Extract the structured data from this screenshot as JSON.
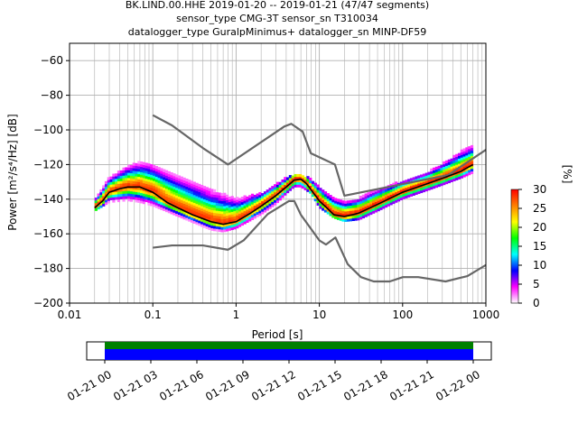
{
  "title_lines": [
    "BK.LIND.00.HHE   2019-01-20 -- 2019-01-21  (47/47 segments)",
    "sensor_type CMG-3T sensor_sn T310034",
    "datalogger_type GuralpMinimus+ datalogger_sn MINP-DF59"
  ],
  "chart_data": {
    "type": "heatmap",
    "xlabel": "Period [s]",
    "ylabel": "Power [m²/s⁴/Hz] [dB]",
    "xscale": "log",
    "xlim": [
      0.01,
      1000
    ],
    "ylim": [
      -200,
      -50
    ],
    "x_ticks": [
      0.01,
      0.1,
      1,
      10,
      100,
      1000
    ],
    "x_tick_labels": [
      "0.01",
      "0.1",
      "1",
      "10",
      "100",
      "1000"
    ],
    "y_ticks": [
      -200,
      -180,
      -160,
      -140,
      -120,
      -100,
      -80,
      -60
    ],
    "y_tick_labels": [
      "−200",
      "−180",
      "−160",
      "−140",
      "−120",
      "−100",
      "−80",
      "−60"
    ],
    "grid": true,
    "colorbar": {
      "label": "[%]",
      "range": [
        0,
        30
      ],
      "ticks": [
        0,
        5,
        10,
        15,
        20,
        25,
        30
      ],
      "tick_labels": [
        "0",
        "5",
        "10",
        "15",
        "20",
        "25",
        "30"
      ],
      "colors": [
        "#ffffff",
        "#ff00ff",
        "#0000ff",
        "#00ffff",
        "#00ff00",
        "#ffff00",
        "#ff8000",
        "#ff0000"
      ]
    },
    "mode_curve": [
      [
        0.02,
        -145
      ],
      [
        0.025,
        -141
      ],
      [
        0.03,
        -136
      ],
      [
        0.04,
        -134
      ],
      [
        0.05,
        -133
      ],
      [
        0.07,
        -133
      ],
      [
        0.1,
        -136
      ],
      [
        0.15,
        -142
      ],
      [
        0.2,
        -145
      ],
      [
        0.3,
        -149
      ],
      [
        0.5,
        -153
      ],
      [
        0.7,
        -154.5
      ],
      [
        1,
        -153
      ],
      [
        1.5,
        -148
      ],
      [
        2,
        -144
      ],
      [
        3,
        -138
      ],
      [
        4,
        -133
      ],
      [
        5,
        -129
      ],
      [
        6,
        -128.5
      ],
      [
        7,
        -131
      ],
      [
        10,
        -141
      ],
      [
        15,
        -149
      ],
      [
        20,
        -150
      ],
      [
        25,
        -149
      ],
      [
        30,
        -148
      ],
      [
        50,
        -143
      ],
      [
        100,
        -136
      ],
      [
        200,
        -131
      ],
      [
        300,
        -128
      ],
      [
        500,
        -124
      ],
      [
        700,
        -120
      ]
    ],
    "spread_upper": [
      [
        0.02,
        -141
      ],
      [
        0.03,
        -128
      ],
      [
        0.05,
        -121
      ],
      [
        0.07,
        -119
      ],
      [
        0.1,
        -120
      ],
      [
        0.2,
        -127
      ],
      [
        0.5,
        -135
      ],
      [
        1,
        -140
      ],
      [
        2,
        -137
      ],
      [
        3,
        -132
      ],
      [
        4,
        -128
      ],
      [
        5,
        -126
      ],
      [
        6,
        -126
      ],
      [
        8,
        -129
      ],
      [
        10,
        -133
      ],
      [
        15,
        -140
      ],
      [
        20,
        -142
      ],
      [
        30,
        -140
      ],
      [
        50,
        -135
      ],
      [
        100,
        -130
      ],
      [
        200,
        -125
      ],
      [
        300,
        -120
      ],
      [
        500,
        -113
      ],
      [
        700,
        -110
      ]
    ],
    "spread_lower": [
      [
        0.02,
        -147
      ],
      [
        0.03,
        -142
      ],
      [
        0.05,
        -141
      ],
      [
        0.07,
        -142
      ],
      [
        0.1,
        -144
      ],
      [
        0.2,
        -150
      ],
      [
        0.5,
        -158
      ],
      [
        0.7,
        -159
      ],
      [
        1,
        -157
      ],
      [
        2,
        -149
      ],
      [
        3,
        -143
      ],
      [
        4,
        -137
      ],
      [
        5,
        -133
      ],
      [
        6,
        -133
      ],
      [
        8,
        -137
      ],
      [
        10,
        -145
      ],
      [
        15,
        -151
      ],
      [
        20,
        -153
      ],
      [
        30,
        -152
      ],
      [
        50,
        -147
      ],
      [
        100,
        -140
      ],
      [
        200,
        -135
      ],
      [
        300,
        -132
      ],
      [
        500,
        -128
      ],
      [
        700,
        -125
      ]
    ],
    "noise_models": [
      {
        "points": [
          [
            0.1,
            -91.5
          ],
          [
            0.17,
            -97.4
          ],
          [
            0.4,
            -110.5
          ],
          [
            0.8,
            -120
          ],
          [
            3.8,
            -98
          ],
          [
            4.6,
            -96.5
          ],
          [
            6.3,
            -101
          ],
          [
            7.9,
            -113.5
          ],
          [
            15.4,
            -120
          ],
          [
            20,
            -138
          ],
          [
            354.8,
            -126
          ],
          [
            1000,
            -111.5
          ]
        ]
      },
      {
        "points": [
          [
            0.1,
            -168
          ],
          [
            0.17,
            -166.7
          ],
          [
            0.4,
            -166.7
          ],
          [
            0.8,
            -169.2
          ],
          [
            1.24,
            -163.7
          ],
          [
            2.4,
            -148.6
          ],
          [
            4.3,
            -141.1
          ],
          [
            5,
            -141.1
          ],
          [
            6,
            -149
          ],
          [
            10,
            -163.8
          ],
          [
            12,
            -166.2
          ],
          [
            15.6,
            -162.1
          ],
          [
            21.9,
            -177.5
          ],
          [
            31.6,
            -185
          ],
          [
            45,
            -187.5
          ],
          [
            70,
            -187.5
          ],
          [
            101,
            -185
          ],
          [
            154,
            -185
          ],
          [
            328,
            -187.5
          ],
          [
            600,
            -184.4
          ],
          [
            1000,
            -178
          ]
        ]
      }
    ]
  },
  "timeline": {
    "tick_labels": [
      "01-21 00",
      "01-21 03",
      "01-21 06",
      "01-21 09",
      "01-21 12",
      "01-21 15",
      "01-21 18",
      "01-21 21",
      "01-22 00"
    ],
    "data_color": "#008000",
    "psd_color": "#0000ff"
  }
}
